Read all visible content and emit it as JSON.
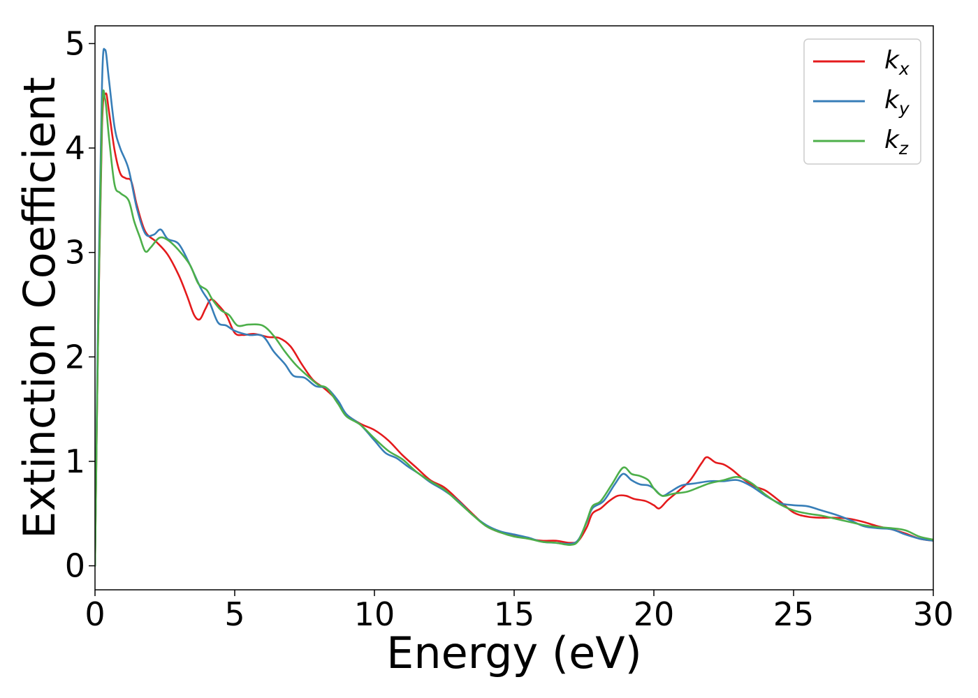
{
  "chart_data": {
    "type": "line",
    "xlabel": "Energy (eV)",
    "ylabel": "Extinction Coefficient",
    "xlim": [
      0,
      30
    ],
    "ylim": [
      -0.23,
      5.17
    ],
    "x_ticks": [
      "0",
      "5",
      "10",
      "15",
      "20",
      "25",
      "30"
    ],
    "y_ticks": [
      "0",
      "1",
      "2",
      "3",
      "4",
      "5"
    ],
    "grid": false,
    "legend_position": "top-right",
    "series": [
      {
        "name": "k",
        "subscript": "x",
        "color": "#e41a1c",
        "points": [
          [
            0,
            0
          ],
          [
            0.1,
            2.0
          ],
          [
            0.25,
            4.2
          ],
          [
            0.38,
            4.52
          ],
          [
            0.5,
            4.35
          ],
          [
            0.7,
            3.98
          ],
          [
            0.9,
            3.76
          ],
          [
            1.1,
            3.71
          ],
          [
            1.3,
            3.68
          ],
          [
            1.5,
            3.45
          ],
          [
            1.8,
            3.2
          ],
          [
            2.2,
            3.1
          ],
          [
            2.6,
            2.98
          ],
          [
            3.0,
            2.78
          ],
          [
            3.3,
            2.58
          ],
          [
            3.55,
            2.4
          ],
          [
            3.75,
            2.36
          ],
          [
            3.95,
            2.46
          ],
          [
            4.15,
            2.55
          ],
          [
            4.4,
            2.5
          ],
          [
            4.7,
            2.4
          ],
          [
            5.0,
            2.23
          ],
          [
            5.3,
            2.21
          ],
          [
            5.7,
            2.22
          ],
          [
            6.2,
            2.19
          ],
          [
            6.6,
            2.18
          ],
          [
            7.0,
            2.1
          ],
          [
            7.4,
            1.93
          ],
          [
            7.8,
            1.78
          ],
          [
            8.2,
            1.7
          ],
          [
            8.6,
            1.6
          ],
          [
            9.0,
            1.45
          ],
          [
            9.5,
            1.36
          ],
          [
            10.0,
            1.3
          ],
          [
            10.5,
            1.2
          ],
          [
            11.0,
            1.06
          ],
          [
            11.5,
            0.94
          ],
          [
            12.0,
            0.82
          ],
          [
            12.5,
            0.75
          ],
          [
            13.0,
            0.63
          ],
          [
            13.5,
            0.5
          ],
          [
            14.0,
            0.38
          ],
          [
            14.5,
            0.32
          ],
          [
            15.0,
            0.29
          ],
          [
            15.5,
            0.26
          ],
          [
            16.0,
            0.24
          ],
          [
            16.5,
            0.24
          ],
          [
            17.0,
            0.22
          ],
          [
            17.3,
            0.24
          ],
          [
            17.6,
            0.37
          ],
          [
            17.8,
            0.5
          ],
          [
            18.1,
            0.55
          ],
          [
            18.4,
            0.62
          ],
          [
            18.7,
            0.67
          ],
          [
            19.0,
            0.67
          ],
          [
            19.3,
            0.64
          ],
          [
            19.7,
            0.62
          ],
          [
            20.0,
            0.58
          ],
          [
            20.2,
            0.55
          ],
          [
            20.5,
            0.63
          ],
          [
            20.9,
            0.72
          ],
          [
            21.3,
            0.82
          ],
          [
            21.7,
            0.98
          ],
          [
            21.9,
            1.04
          ],
          [
            22.2,
            0.99
          ],
          [
            22.5,
            0.97
          ],
          [
            22.8,
            0.92
          ],
          [
            23.2,
            0.83
          ],
          [
            23.6,
            0.76
          ],
          [
            24.0,
            0.72
          ],
          [
            24.5,
            0.62
          ],
          [
            25.0,
            0.51
          ],
          [
            25.5,
            0.47
          ],
          [
            26.0,
            0.46
          ],
          [
            26.5,
            0.46
          ],
          [
            27.0,
            0.45
          ],
          [
            27.5,
            0.42
          ],
          [
            28.0,
            0.38
          ],
          [
            28.5,
            0.35
          ],
          [
            29.0,
            0.31
          ],
          [
            29.5,
            0.26
          ],
          [
            30.0,
            0.24
          ]
        ]
      },
      {
        "name": "k",
        "subscript": "y",
        "color": "#377eb8",
        "points": [
          [
            0,
            0
          ],
          [
            0.1,
            2.2
          ],
          [
            0.25,
            4.6
          ],
          [
            0.36,
            4.94
          ],
          [
            0.5,
            4.65
          ],
          [
            0.7,
            4.2
          ],
          [
            0.9,
            4.0
          ],
          [
            1.2,
            3.8
          ],
          [
            1.5,
            3.42
          ],
          [
            1.8,
            3.18
          ],
          [
            2.1,
            3.17
          ],
          [
            2.35,
            3.22
          ],
          [
            2.6,
            3.13
          ],
          [
            3.0,
            3.08
          ],
          [
            3.4,
            2.88
          ],
          [
            3.8,
            2.65
          ],
          [
            4.1,
            2.52
          ],
          [
            4.4,
            2.33
          ],
          [
            4.7,
            2.3
          ],
          [
            5.0,
            2.25
          ],
          [
            5.5,
            2.21
          ],
          [
            6.0,
            2.2
          ],
          [
            6.4,
            2.05
          ],
          [
            6.8,
            1.93
          ],
          [
            7.1,
            1.82
          ],
          [
            7.5,
            1.8
          ],
          [
            7.9,
            1.72
          ],
          [
            8.3,
            1.7
          ],
          [
            8.7,
            1.58
          ],
          [
            9.0,
            1.45
          ],
          [
            9.5,
            1.35
          ],
          [
            10.0,
            1.2
          ],
          [
            10.4,
            1.08
          ],
          [
            10.8,
            1.03
          ],
          [
            11.2,
            0.95
          ],
          [
            11.6,
            0.88
          ],
          [
            12.0,
            0.8
          ],
          [
            12.5,
            0.72
          ],
          [
            13.0,
            0.62
          ],
          [
            13.5,
            0.49
          ],
          [
            14.0,
            0.39
          ],
          [
            14.5,
            0.33
          ],
          [
            15.0,
            0.3
          ],
          [
            15.5,
            0.27
          ],
          [
            16.0,
            0.23
          ],
          [
            16.5,
            0.22
          ],
          [
            17.0,
            0.21
          ],
          [
            17.3,
            0.25
          ],
          [
            17.6,
            0.42
          ],
          [
            17.8,
            0.55
          ],
          [
            18.2,
            0.62
          ],
          [
            18.6,
            0.78
          ],
          [
            18.9,
            0.88
          ],
          [
            19.2,
            0.82
          ],
          [
            19.5,
            0.78
          ],
          [
            19.8,
            0.77
          ],
          [
            20.0,
            0.74
          ],
          [
            20.3,
            0.67
          ],
          [
            20.6,
            0.71
          ],
          [
            21.0,
            0.77
          ],
          [
            21.5,
            0.79
          ],
          [
            22.0,
            0.81
          ],
          [
            22.5,
            0.81
          ],
          [
            23.0,
            0.82
          ],
          [
            23.5,
            0.76
          ],
          [
            24.0,
            0.67
          ],
          [
            24.5,
            0.6
          ],
          [
            25.0,
            0.58
          ],
          [
            25.5,
            0.57
          ],
          [
            26.0,
            0.53
          ],
          [
            26.5,
            0.49
          ],
          [
            27.0,
            0.44
          ],
          [
            27.5,
            0.38
          ],
          [
            28.0,
            0.36
          ],
          [
            28.5,
            0.35
          ],
          [
            29.0,
            0.3
          ],
          [
            29.5,
            0.26
          ],
          [
            30.0,
            0.24
          ]
        ]
      },
      {
        "name": "k",
        "subscript": "z",
        "color": "#4daf4a",
        "points": [
          [
            0,
            0
          ],
          [
            0.1,
            2.0
          ],
          [
            0.25,
            4.3
          ],
          [
            0.36,
            4.47
          ],
          [
            0.5,
            4.1
          ],
          [
            0.7,
            3.65
          ],
          [
            0.9,
            3.57
          ],
          [
            1.2,
            3.5
          ],
          [
            1.4,
            3.3
          ],
          [
            1.6,
            3.15
          ],
          [
            1.8,
            3.01
          ],
          [
            2.0,
            3.05
          ],
          [
            2.3,
            3.14
          ],
          [
            2.6,
            3.12
          ],
          [
            3.0,
            3.02
          ],
          [
            3.4,
            2.88
          ],
          [
            3.7,
            2.7
          ],
          [
            4.0,
            2.64
          ],
          [
            4.2,
            2.55
          ],
          [
            4.5,
            2.45
          ],
          [
            4.8,
            2.4
          ],
          [
            5.1,
            2.3
          ],
          [
            5.5,
            2.31
          ],
          [
            6.0,
            2.3
          ],
          [
            6.4,
            2.2
          ],
          [
            6.8,
            2.05
          ],
          [
            7.2,
            1.92
          ],
          [
            7.6,
            1.82
          ],
          [
            8.0,
            1.73
          ],
          [
            8.3,
            1.7
          ],
          [
            8.7,
            1.55
          ],
          [
            9.0,
            1.43
          ],
          [
            9.5,
            1.35
          ],
          [
            10.0,
            1.22
          ],
          [
            10.5,
            1.1
          ],
          [
            11.0,
            1.02
          ],
          [
            11.5,
            0.9
          ],
          [
            12.0,
            0.81
          ],
          [
            12.5,
            0.73
          ],
          [
            13.0,
            0.61
          ],
          [
            13.5,
            0.49
          ],
          [
            14.0,
            0.38
          ],
          [
            14.5,
            0.32
          ],
          [
            15.0,
            0.28
          ],
          [
            15.5,
            0.26
          ],
          [
            16.0,
            0.23
          ],
          [
            16.5,
            0.22
          ],
          [
            17.0,
            0.2
          ],
          [
            17.3,
            0.24
          ],
          [
            17.6,
            0.43
          ],
          [
            17.8,
            0.57
          ],
          [
            18.1,
            0.62
          ],
          [
            18.5,
            0.78
          ],
          [
            18.9,
            0.94
          ],
          [
            19.2,
            0.88
          ],
          [
            19.5,
            0.86
          ],
          [
            19.8,
            0.82
          ],
          [
            20.0,
            0.74
          ],
          [
            20.3,
            0.67
          ],
          [
            20.7,
            0.69
          ],
          [
            21.2,
            0.71
          ],
          [
            21.6,
            0.75
          ],
          [
            22.0,
            0.79
          ],
          [
            22.5,
            0.82
          ],
          [
            23.0,
            0.85
          ],
          [
            23.5,
            0.79
          ],
          [
            24.0,
            0.68
          ],
          [
            24.5,
            0.59
          ],
          [
            25.0,
            0.53
          ],
          [
            25.5,
            0.5
          ],
          [
            26.0,
            0.48
          ],
          [
            26.5,
            0.45
          ],
          [
            27.0,
            0.42
          ],
          [
            27.5,
            0.39
          ],
          [
            28.0,
            0.37
          ],
          [
            28.5,
            0.36
          ],
          [
            29.0,
            0.34
          ],
          [
            29.5,
            0.28
          ],
          [
            30.0,
            0.25
          ]
        ]
      }
    ]
  }
}
